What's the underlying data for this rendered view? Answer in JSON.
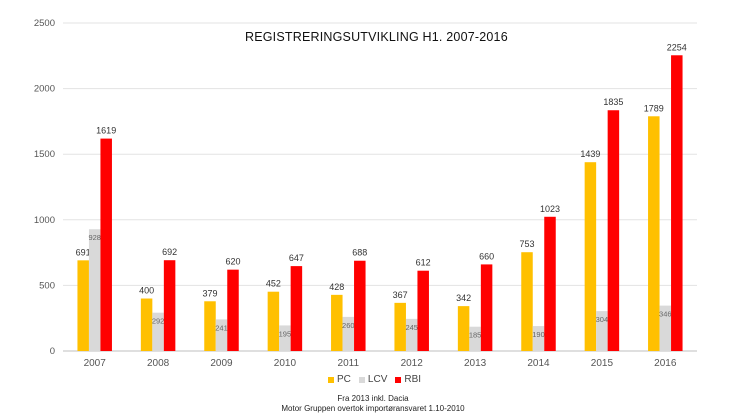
{
  "chart_data": {
    "type": "bar",
    "title": "REGISTRERINGSUTVIKLING  H1. 2007-2016",
    "categories": [
      "2007",
      "2008",
      "2009",
      "2010",
      "2011",
      "2012",
      "2013",
      "2014",
      "2015",
      "2016"
    ],
    "series": [
      {
        "name": "PC",
        "color": "#FFC000",
        "values": [
          691,
          400,
          379,
          452,
          428,
          367,
          342,
          753,
          1439,
          1789
        ]
      },
      {
        "name": "LCV",
        "color": "#D9D9D9",
        "values": [
          928,
          292,
          241,
          195,
          260,
          245,
          185,
          190,
          304,
          346
        ]
      },
      {
        "name": "RBI",
        "color": "#FF0000",
        "values": [
          1619,
          692,
          620,
          647,
          688,
          612,
          660,
          1023,
          1835,
          2254
        ]
      }
    ],
    "ylim": [
      0,
      2500
    ],
    "yticks": [
      0,
      500,
      1000,
      1500,
      2000,
      2500
    ],
    "grid": true,
    "legend_position": "bottom"
  },
  "notes": {
    "line1": "Fra 2013 inkl. Dacia",
    "line2": "Motor Gruppen overtok importøransvaret 1.10-2010"
  }
}
